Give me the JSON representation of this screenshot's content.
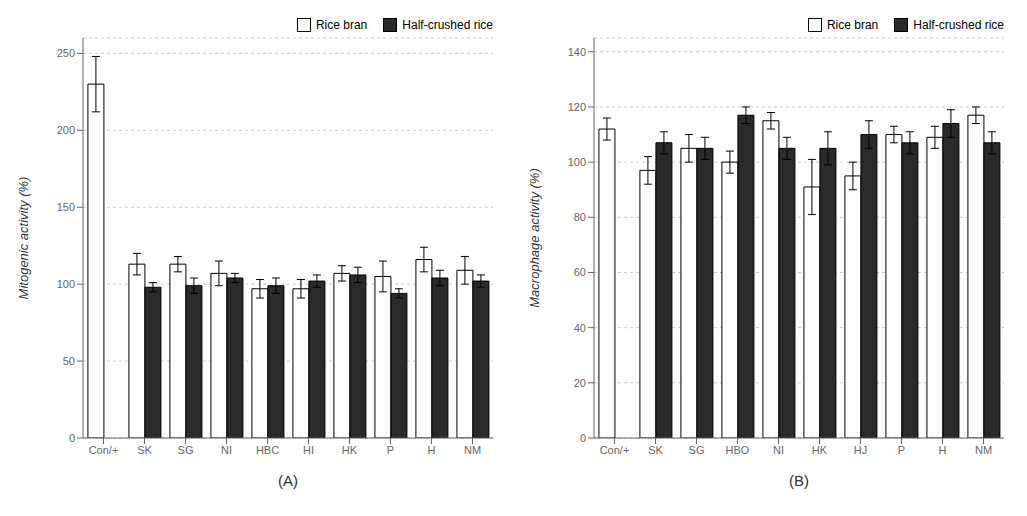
{
  "chart_data": [
    {
      "type": "bar",
      "title": "(A)",
      "ylabel": "Mitogenic activity (%)",
      "categories": [
        "Con/+",
        "SK",
        "SG",
        "NI",
        "HBC",
        "HI",
        "HK",
        "P",
        "H",
        "NM"
      ],
      "series": [
        {
          "name": "Rice bran",
          "color": "#ffffff",
          "values": [
            230,
            113,
            113,
            107,
            97,
            97,
            107,
            105,
            116,
            109
          ],
          "errors": [
            18,
            7,
            5,
            8,
            6,
            6,
            5,
            10,
            8,
            9
          ]
        },
        {
          "name": "Half-crushed rice",
          "color": "#2a2a2a",
          "values": [
            null,
            98,
            99,
            104,
            99,
            102,
            106,
            94,
            104,
            102
          ],
          "errors": [
            null,
            3,
            5,
            3,
            5,
            4,
            5,
            3,
            5,
            4
          ]
        }
      ],
      "ylim": [
        0,
        260
      ],
      "yticks": [
        0,
        50,
        100,
        150,
        200,
        250
      ],
      "legend": "upper right"
    },
    {
      "type": "bar",
      "title": "(B)",
      "ylabel": "Macrophage activity (%)",
      "categories": [
        "Con/+",
        "SK",
        "SG",
        "HBO",
        "NI",
        "HK",
        "HJ",
        "P",
        "H",
        "NM"
      ],
      "series": [
        {
          "name": "Rice bran",
          "color": "#ffffff",
          "values": [
            112,
            97,
            105,
            100,
            115,
            91,
            95,
            110,
            109,
            117
          ],
          "errors": [
            4,
            5,
            5,
            4,
            3,
            10,
            5,
            3,
            4,
            3
          ]
        },
        {
          "name": "Half-crushed rice",
          "color": "#2a2a2a",
          "values": [
            null,
            107,
            105,
            117,
            105,
            105,
            110,
            107,
            114,
            107
          ],
          "errors": [
            null,
            4,
            4,
            3,
            4,
            6,
            5,
            4,
            5,
            4
          ]
        }
      ],
      "ylim": [
        0,
        145
      ],
      "yticks": [
        0,
        20,
        40,
        60,
        80,
        100,
        120,
        140
      ],
      "legend": "upper right"
    }
  ]
}
